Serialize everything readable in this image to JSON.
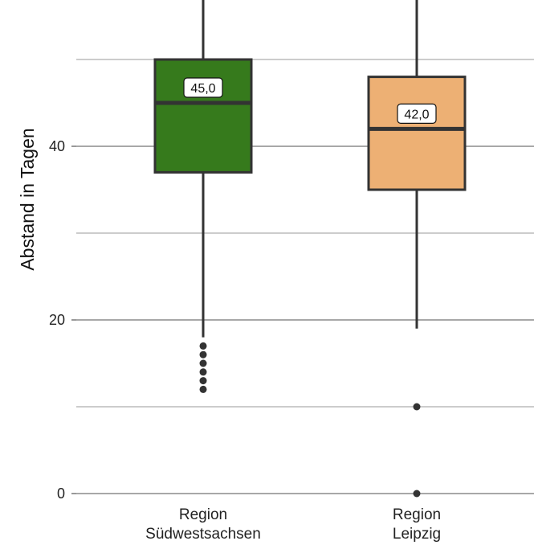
{
  "chart_data": {
    "type": "box",
    "title": "",
    "xlabel": "",
    "ylabel": "Abstand in Tagen",
    "ylim": [
      -1,
      57
    ],
    "y_ticks": [
      0,
      20,
      40
    ],
    "y_tick_labels": [
      "0",
      "20",
      "40"
    ],
    "y_minor_gridlines": [
      10,
      30,
      50
    ],
    "grid": "horizontal",
    "categories": [
      [
        "Region",
        "Südwestsachsen"
      ],
      [
        "Region",
        "Leipzig"
      ]
    ],
    "boxes": [
      {
        "category": "Region Südwestsachsen",
        "color": "#367a1c",
        "whisker_low": 18,
        "q1": 37,
        "median": 45,
        "q3": 50,
        "whisker_high": 57,
        "median_label": "45,0",
        "outliers": [
          12,
          13,
          14,
          15,
          16,
          17
        ]
      },
      {
        "category": "Region Leipzig",
        "color": "#edb074",
        "whisker_low": 19,
        "q1": 35,
        "median": 42,
        "q3": 48,
        "whisker_high": 57,
        "median_label": "42,0",
        "outliers": [
          0,
          10
        ]
      }
    ]
  }
}
